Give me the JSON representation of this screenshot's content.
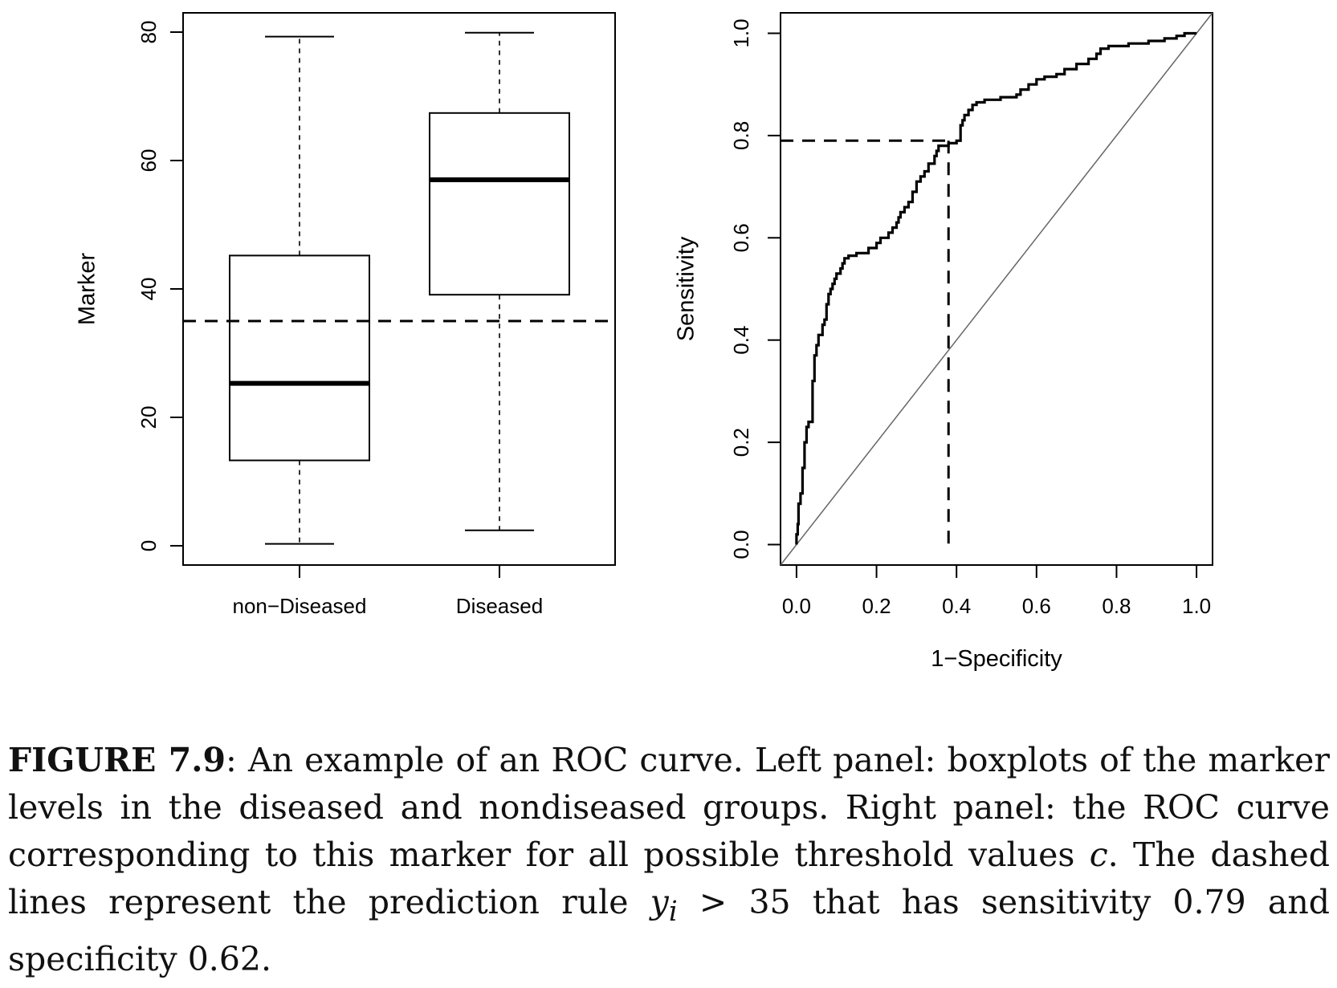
{
  "chart_data": [
    {
      "type": "box",
      "ylabel": "Marker",
      "ylim": [
        -3,
        83
      ],
      "yticks": [
        0,
        20,
        40,
        60,
        80
      ],
      "categories": [
        "non−Diseased",
        "Diseased"
      ],
      "boxes": [
        {
          "name": "non−Diseased",
          "min": 0.3,
          "q1": 13.3,
          "median": 25.3,
          "q3": 45.2,
          "max": 79.3
        },
        {
          "name": "Diseased",
          "min": 2.4,
          "q1": 39.1,
          "median": 57.0,
          "q3": 67.4,
          "max": 79.9
        }
      ],
      "threshold": 35
    },
    {
      "type": "line",
      "xlabel": "1−Specificity",
      "ylabel": "Sensitivity",
      "xlim": [
        -0.04,
        1.04
      ],
      "ylim": [
        -0.04,
        1.04
      ],
      "xticks": [
        "0.0",
        "0.2",
        "0.4",
        "0.6",
        "0.8",
        "1.0"
      ],
      "yticks": [
        "0.0",
        "0.2",
        "0.4",
        "0.6",
        "0.8",
        "1.0"
      ],
      "roc": [
        [
          0.0,
          0.0
        ],
        [
          0.0,
          0.02
        ],
        [
          0.003,
          0.02
        ],
        [
          0.003,
          0.04
        ],
        [
          0.005,
          0.04
        ],
        [
          0.005,
          0.08
        ],
        [
          0.01,
          0.08
        ],
        [
          0.01,
          0.1
        ],
        [
          0.015,
          0.1
        ],
        [
          0.015,
          0.15
        ],
        [
          0.02,
          0.15
        ],
        [
          0.02,
          0.2
        ],
        [
          0.025,
          0.2
        ],
        [
          0.025,
          0.23
        ],
        [
          0.03,
          0.23
        ],
        [
          0.03,
          0.24
        ],
        [
          0.04,
          0.24
        ],
        [
          0.04,
          0.32
        ],
        [
          0.045,
          0.32
        ],
        [
          0.045,
          0.37
        ],
        [
          0.05,
          0.37
        ],
        [
          0.05,
          0.39
        ],
        [
          0.055,
          0.39
        ],
        [
          0.055,
          0.41
        ],
        [
          0.065,
          0.41
        ],
        [
          0.065,
          0.43
        ],
        [
          0.07,
          0.43
        ],
        [
          0.07,
          0.44
        ],
        [
          0.075,
          0.44
        ],
        [
          0.075,
          0.47
        ],
        [
          0.08,
          0.47
        ],
        [
          0.08,
          0.49
        ],
        [
          0.085,
          0.49
        ],
        [
          0.085,
          0.5
        ],
        [
          0.09,
          0.5
        ],
        [
          0.09,
          0.51
        ],
        [
          0.095,
          0.51
        ],
        [
          0.095,
          0.52
        ],
        [
          0.1,
          0.52
        ],
        [
          0.1,
          0.53
        ],
        [
          0.11,
          0.53
        ],
        [
          0.11,
          0.54
        ],
        [
          0.115,
          0.54
        ],
        [
          0.115,
          0.55
        ],
        [
          0.12,
          0.55
        ],
        [
          0.12,
          0.56
        ],
        [
          0.13,
          0.56
        ],
        [
          0.13,
          0.565
        ],
        [
          0.15,
          0.565
        ],
        [
          0.15,
          0.57
        ],
        [
          0.18,
          0.57
        ],
        [
          0.18,
          0.58
        ],
        [
          0.2,
          0.58
        ],
        [
          0.2,
          0.59
        ],
        [
          0.21,
          0.59
        ],
        [
          0.21,
          0.6
        ],
        [
          0.23,
          0.6
        ],
        [
          0.23,
          0.61
        ],
        [
          0.24,
          0.61
        ],
        [
          0.24,
          0.62
        ],
        [
          0.25,
          0.62
        ],
        [
          0.25,
          0.63
        ],
        [
          0.255,
          0.63
        ],
        [
          0.255,
          0.64
        ],
        [
          0.26,
          0.64
        ],
        [
          0.26,
          0.65
        ],
        [
          0.27,
          0.65
        ],
        [
          0.27,
          0.66
        ],
        [
          0.28,
          0.66
        ],
        [
          0.28,
          0.67
        ],
        [
          0.29,
          0.67
        ],
        [
          0.29,
          0.69
        ],
        [
          0.3,
          0.69
        ],
        [
          0.3,
          0.71
        ],
        [
          0.31,
          0.71
        ],
        [
          0.31,
          0.72
        ],
        [
          0.32,
          0.72
        ],
        [
          0.32,
          0.73
        ],
        [
          0.33,
          0.73
        ],
        [
          0.33,
          0.745
        ],
        [
          0.345,
          0.745
        ],
        [
          0.345,
          0.76
        ],
        [
          0.35,
          0.76
        ],
        [
          0.35,
          0.77
        ],
        [
          0.355,
          0.77
        ],
        [
          0.355,
          0.78
        ],
        [
          0.38,
          0.78
        ],
        [
          0.38,
          0.785
        ],
        [
          0.4,
          0.785
        ],
        [
          0.4,
          0.79
        ],
        [
          0.41,
          0.79
        ],
        [
          0.41,
          0.82
        ],
        [
          0.415,
          0.82
        ],
        [
          0.415,
          0.83
        ],
        [
          0.42,
          0.83
        ],
        [
          0.42,
          0.84
        ],
        [
          0.43,
          0.84
        ],
        [
          0.43,
          0.85
        ],
        [
          0.44,
          0.85
        ],
        [
          0.44,
          0.86
        ],
        [
          0.45,
          0.86
        ],
        [
          0.45,
          0.865
        ],
        [
          0.47,
          0.865
        ],
        [
          0.47,
          0.87
        ],
        [
          0.51,
          0.87
        ],
        [
          0.51,
          0.875
        ],
        [
          0.55,
          0.875
        ],
        [
          0.55,
          0.88
        ],
        [
          0.56,
          0.88
        ],
        [
          0.56,
          0.89
        ],
        [
          0.58,
          0.89
        ],
        [
          0.58,
          0.9
        ],
        [
          0.6,
          0.9
        ],
        [
          0.6,
          0.91
        ],
        [
          0.62,
          0.91
        ],
        [
          0.62,
          0.915
        ],
        [
          0.65,
          0.915
        ],
        [
          0.65,
          0.92
        ],
        [
          0.67,
          0.92
        ],
        [
          0.67,
          0.93
        ],
        [
          0.7,
          0.93
        ],
        [
          0.7,
          0.94
        ],
        [
          0.73,
          0.94
        ],
        [
          0.73,
          0.95
        ],
        [
          0.75,
          0.95
        ],
        [
          0.75,
          0.96
        ],
        [
          0.76,
          0.96
        ],
        [
          0.76,
          0.97
        ],
        [
          0.78,
          0.97
        ],
        [
          0.78,
          0.975
        ],
        [
          0.83,
          0.975
        ],
        [
          0.83,
          0.98
        ],
        [
          0.88,
          0.98
        ],
        [
          0.88,
          0.985
        ],
        [
          0.92,
          0.985
        ],
        [
          0.92,
          0.99
        ],
        [
          0.95,
          0.99
        ],
        [
          0.95,
          0.995
        ],
        [
          0.97,
          0.995
        ],
        [
          0.97,
          1.0
        ],
        [
          1.0,
          1.0
        ]
      ],
      "operating_point": {
        "fpr": 0.38,
        "sensitivity": 0.79
      },
      "diagonal": true
    }
  ],
  "caption": {
    "label": "FIGURE 7.9",
    "p1": ": An example of an ROC curve. Left panel: boxplots of the marker levels in the diseased and nondiseased groups. Right panel: the ROC curve corresponding to this marker for all possible threshold values ",
    "c": "c",
    "p2": ". The dashed lines represent the prediction rule ",
    "y": "y",
    "i": "i",
    "p3": " > 35 that has sensitivity 0.79 and specificity 0.62."
  }
}
